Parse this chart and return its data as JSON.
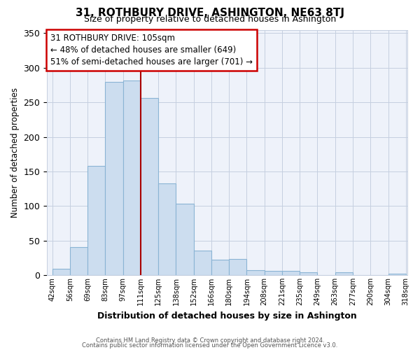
{
  "title": "31, ROTHBURY DRIVE, ASHINGTON, NE63 8TJ",
  "subtitle": "Size of property relative to detached houses in Ashington",
  "xlabel": "Distribution of detached houses by size in Ashington",
  "ylabel": "Number of detached properties",
  "bin_labels": [
    "42sqm",
    "56sqm",
    "69sqm",
    "83sqm",
    "97sqm",
    "111sqm",
    "125sqm",
    "138sqm",
    "152sqm",
    "166sqm",
    "180sqm",
    "194sqm",
    "208sqm",
    "221sqm",
    "235sqm",
    "249sqm",
    "263sqm",
    "277sqm",
    "290sqm",
    "304sqm",
    "318sqm"
  ],
  "bar_values": [
    9,
    41,
    158,
    280,
    282,
    256,
    133,
    103,
    35,
    22,
    23,
    7,
    6,
    6,
    4,
    0,
    4,
    0,
    0,
    2
  ],
  "bar_color": "#ccddef",
  "bar_edge_color": "#8ab4d4",
  "annotation_title": "31 ROTHBURY DRIVE: 105sqm",
  "annotation_line1": "← 48% of detached houses are smaller (649)",
  "annotation_line2": "51% of semi-detached houses are larger (701) →",
  "vline_color": "#aa0000",
  "vline_x": 5.0,
  "ylim": [
    0,
    355
  ],
  "yticks": [
    0,
    50,
    100,
    150,
    200,
    250,
    300,
    350
  ],
  "plot_bg_color": "#eef2fa",
  "footer1": "Contains HM Land Registry data © Crown copyright and database right 2024.",
  "footer2": "Contains public sector information licensed under the Open Government Licence v3.0."
}
